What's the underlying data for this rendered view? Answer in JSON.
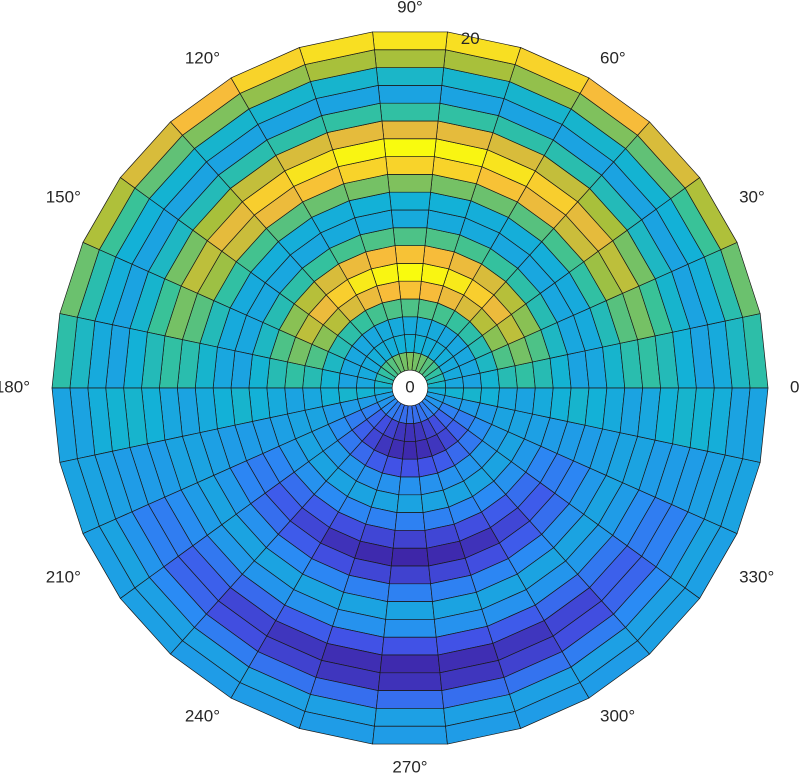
{
  "chart_data": {
    "type": "polar-heatmap",
    "theta_edges": [
      0,
      12,
      24,
      36,
      48,
      60,
      72,
      84,
      96,
      108,
      120,
      132,
      144,
      156,
      168,
      180,
      192,
      204,
      216,
      228,
      240,
      252,
      264,
      276,
      288,
      300,
      312,
      324,
      336,
      348,
      360
    ],
    "r_edges": [
      1,
      2,
      3,
      4,
      5,
      6,
      7,
      8,
      9,
      10,
      11,
      12,
      13,
      14,
      15,
      16,
      17,
      18,
      19,
      20
    ],
    "values": [
      [
        51,
        55,
        59,
        62,
        64,
        66,
        67,
        68,
        67,
        66,
        64,
        62,
        59,
        55,
        51,
        48,
        44,
        41,
        38,
        35,
        33,
        32,
        32,
        32,
        33,
        35,
        38,
        41,
        44,
        48
      ],
      [
        46,
        47,
        47,
        48,
        48,
        48,
        49,
        49,
        49,
        48,
        48,
        48,
        47,
        47,
        46,
        50,
        43,
        36,
        30,
        25,
        22,
        19,
        18,
        19,
        22,
        25,
        30,
        36,
        43,
        50
      ],
      [
        45,
        46,
        46,
        46,
        46,
        47,
        47,
        47,
        47,
        47,
        46,
        46,
        46,
        46,
        45,
        51,
        43,
        35,
        29,
        23,
        19,
        17,
        16,
        17,
        19,
        23,
        29,
        35,
        43,
        51
      ],
      [
        50,
        53,
        56,
        58,
        60,
        62,
        63,
        63,
        63,
        62,
        60,
        58,
        56,
        53,
        50,
        49,
        43,
        39,
        34,
        31,
        28,
        26,
        26,
        26,
        28,
        31,
        34,
        39,
        43,
        49
      ],
      [
        56,
        63,
        69,
        74,
        79,
        82,
        84,
        85,
        84,
        82,
        79,
        74,
        69,
        63,
        56,
        46,
        45,
        43,
        42,
        41,
        40,
        40,
        40,
        40,
        40,
        41,
        42,
        43,
        45,
        46
      ],
      [
        59,
        67,
        75,
        82,
        87,
        92,
        94,
        95,
        94,
        92,
        87,
        82,
        75,
        67,
        59,
        45,
        45,
        45,
        45,
        45,
        45,
        45,
        45,
        45,
        45,
        45,
        45,
        45,
        45,
        45
      ],
      [
        56,
        63,
        69,
        74,
        79,
        82,
        84,
        85,
        84,
        82,
        79,
        74,
        69,
        63,
        56,
        47,
        44,
        42,
        40,
        38,
        37,
        36,
        36,
        36,
        37,
        38,
        40,
        42,
        44,
        47
      ],
      [
        50,
        53,
        56,
        58,
        60,
        62,
        63,
        63,
        63,
        62,
        60,
        58,
        56,
        53,
        50,
        49,
        43,
        37,
        32,
        28,
        25,
        23,
        22,
        23,
        25,
        28,
        32,
        37,
        43,
        49
      ],
      [
        45,
        46,
        46,
        46,
        46,
        47,
        47,
        47,
        47,
        47,
        46,
        46,
        46,
        46,
        45,
        51,
        43,
        35,
        28,
        23,
        18,
        16,
        15,
        16,
        18,
        23,
        28,
        35,
        43,
        51
      ],
      [
        46,
        47,
        47,
        48,
        48,
        48,
        49,
        49,
        49,
        48,
        48,
        48,
        47,
        47,
        46,
        49,
        43,
        37,
        32,
        28,
        25,
        23,
        22,
        23,
        25,
        28,
        32,
        37,
        43,
        49
      ],
      [
        51,
        55,
        59,
        62,
        64,
        66,
        67,
        68,
        67,
        66,
        64,
        62,
        59,
        55,
        51,
        47,
        44,
        42,
        40,
        38,
        37,
        36,
        36,
        36,
        37,
        38,
        40,
        42,
        44,
        47
      ],
      [
        57,
        64,
        71,
        77,
        82,
        85,
        88,
        88,
        88,
        85,
        82,
        77,
        71,
        64,
        57,
        45,
        45,
        45,
        45,
        45,
        45,
        45,
        45,
        45,
        45,
        45,
        45,
        45,
        45,
        45
      ],
      [
        59,
        67,
        75,
        81,
        87,
        91,
        94,
        95,
        94,
        91,
        87,
        81,
        75,
        67,
        59,
        46,
        45,
        43,
        42,
        41,
        40,
        40,
        40,
        40,
        40,
        41,
        42,
        43,
        45,
        46
      ],
      [
        55,
        61,
        67,
        72,
        76,
        79,
        81,
        81,
        81,
        79,
        76,
        72,
        67,
        61,
        55,
        49,
        43,
        39,
        34,
        31,
        28,
        26,
        26,
        26,
        28,
        31,
        34,
        39,
        43,
        49
      ],
      [
        49,
        51,
        53,
        55,
        57,
        58,
        59,
        59,
        59,
        58,
        57,
        55,
        53,
        51,
        49,
        51,
        43,
        35,
        29,
        23,
        19,
        17,
        16,
        17,
        19,
        23,
        29,
        35,
        43,
        51
      ],
      [
        45,
        45,
        45,
        45,
        45,
        45,
        45,
        45,
        45,
        45,
        45,
        45,
        45,
        45,
        45,
        50,
        43,
        36,
        30,
        25,
        22,
        19,
        18,
        19,
        22,
        25,
        30,
        36,
        43,
        50
      ],
      [
        47,
        48,
        49,
        50,
        51,
        51,
        51,
        52,
        51,
        51,
        51,
        50,
        49,
        48,
        47,
        48,
        44,
        41,
        38,
        35,
        33,
        32,
        32,
        32,
        33,
        35,
        38,
        41,
        44,
        48
      ],
      [
        53,
        57,
        61,
        65,
        68,
        70,
        72,
        72,
        72,
        70,
        68,
        65,
        61,
        57,
        53,
        45,
        45,
        45,
        44,
        44,
        44,
        44,
        44,
        44,
        44,
        44,
        44,
        45,
        45,
        45
      ],
      [
        58,
        66,
        73,
        79,
        84,
        88,
        90,
        91,
        90,
        88,
        84,
        79,
        73,
        66,
        58,
        45,
        45,
        44,
        44,
        43,
        43,
        43,
        43,
        43,
        43,
        43,
        44,
        44,
        45,
        45
      ]
    ],
    "clim": [
      15,
      95
    ],
    "colormap": [
      "#3e26a8",
      "#4154e8",
      "#2a8af4",
      "#12b2d6",
      "#36c29a",
      "#a9c03a",
      "#f7ba3c",
      "#f9fb0e"
    ],
    "rlim": [
      0,
      20
    ],
    "rticks": [
      0,
      20
    ],
    "thetaticks": [
      {
        "value": 0,
        "label": "0°"
      },
      {
        "value": 30,
        "label": "30°"
      },
      {
        "value": 60,
        "label": "60°"
      },
      {
        "value": 90,
        "label": "90°"
      },
      {
        "value": 120,
        "label": "120°"
      },
      {
        "value": 150,
        "label": "150°"
      },
      {
        "value": 180,
        "label": "180°"
      },
      {
        "value": 210,
        "label": "210°"
      },
      {
        "value": 240,
        "label": "240°"
      },
      {
        "value": 270,
        "label": "270°"
      },
      {
        "value": 300,
        "label": "300°"
      },
      {
        "value": 330,
        "label": "330°"
      }
    ]
  }
}
